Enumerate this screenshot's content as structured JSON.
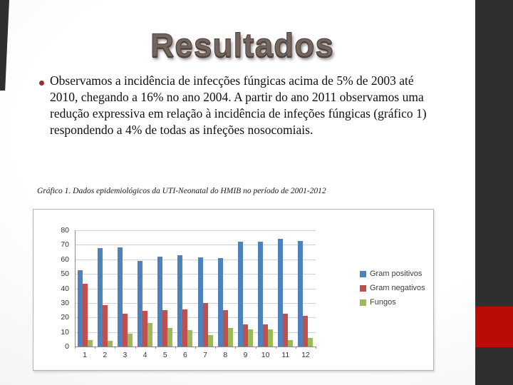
{
  "slide": {
    "title": "Resultados",
    "bullet_text": "Observamos a incidência de infecções fúngicas acima de 5% de 2003 até 2010, chegando a 16% no ano 2004. A partir do ano 2011 observamos uma redução expressiva em relação à incidência de infeções fúngicas (gráfico 1) respondendo a 4% de todas as infeções nosocomiais.",
    "caption": "Gráfico 1. Dados epidemiológicos da UTI-Neonatal do HMIB no período de 2001-2012"
  },
  "colors": {
    "side_bar_dark": "#2f2f2f",
    "accent_red_square": "#ba0b06",
    "series_blue": "#4F81BD",
    "series_red": "#C0504D",
    "series_green": "#9BBB59"
  },
  "chart_data": {
    "type": "bar",
    "title": "",
    "xlabel": "",
    "ylabel": "",
    "categories": [
      "1",
      "2",
      "3",
      "4",
      "5",
      "6",
      "7",
      "8",
      "9",
      "10",
      "11",
      "12"
    ],
    "series": [
      {
        "name": "Gram positivos",
        "color": "#4F81BD",
        "values": [
          52.5,
          67.5,
          68,
          59,
          62,
          63,
          61.5,
          61,
          72,
          72,
          74,
          72.5
        ]
      },
      {
        "name": "Gram negativos",
        "color": "#C0504D",
        "values": [
          43,
          28.5,
          22.5,
          24.5,
          25,
          25.5,
          30,
          25,
          15,
          15,
          22.5,
          21
        ]
      },
      {
        "name": "Fungos",
        "color": "#9BBB59",
        "values": [
          4.5,
          4,
          9,
          16,
          13,
          11.5,
          8,
          13,
          12,
          12,
          4.5,
          6
        ]
      }
    ],
    "ylim": [
      0,
      80
    ],
    "ytick_step": 10,
    "grid": true,
    "legend_position": "right"
  }
}
